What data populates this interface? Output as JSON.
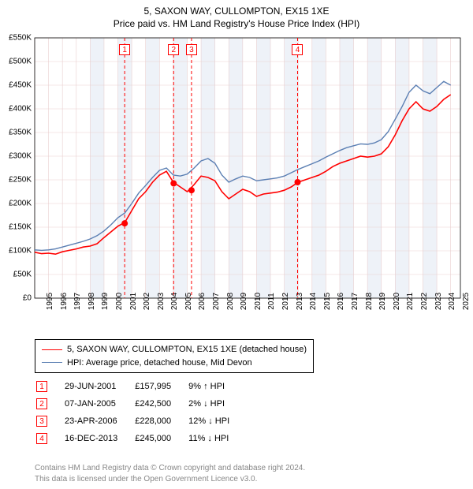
{
  "title_line1": "5, SAXON WAY, CULLOMPTON, EX15 1XE",
  "title_line2": "Price paid vs. HM Land Registry's House Price Index (HPI)",
  "chart": {
    "type": "line",
    "x_min": 1995,
    "x_max": 2025.7,
    "y_min": 0,
    "y_max": 550000,
    "y_ticks": [
      0,
      50000,
      100000,
      150000,
      200000,
      250000,
      300000,
      350000,
      400000,
      450000,
      500000,
      550000
    ],
    "y_tick_labels": [
      "£0",
      "£50K",
      "£100K",
      "£150K",
      "£200K",
      "£250K",
      "£300K",
      "£350K",
      "£400K",
      "£450K",
      "£500K",
      "£550K"
    ],
    "x_ticks": [
      1995,
      1996,
      1997,
      1998,
      1999,
      2000,
      2001,
      2002,
      2003,
      2004,
      2005,
      2006,
      2007,
      2008,
      2009,
      2010,
      2011,
      2012,
      2013,
      2014,
      2015,
      2016,
      2017,
      2018,
      2019,
      2020,
      2021,
      2022,
      2023,
      2024,
      2025
    ],
    "background_color": "#ffffff",
    "grid_color": "#e9cfcf",
    "shaded_band_color": "#eef2f8",
    "shaded_years": [
      1999,
      2001,
      2003,
      2005,
      2007,
      2009,
      2011,
      2013,
      2015,
      2017,
      2019,
      2021,
      2023
    ],
    "series": [
      {
        "name": "price_paid",
        "label": "5, SAXON WAY, CULLOMPTON, EX15 1XE (detached house)",
        "color": "#ff0000",
        "width": 1.6,
        "points": [
          [
            1995.0,
            97000
          ],
          [
            1995.5,
            94000
          ],
          [
            1996.0,
            95000
          ],
          [
            1996.5,
            93000
          ],
          [
            1997.0,
            98000
          ],
          [
            1997.5,
            101000
          ],
          [
            1998.0,
            104000
          ],
          [
            1998.5,
            108000
          ],
          [
            1999.0,
            110000
          ],
          [
            1999.5,
            115000
          ],
          [
            2000.0,
            128000
          ],
          [
            2000.5,
            140000
          ],
          [
            2001.0,
            152000
          ],
          [
            2001.5,
            160000
          ],
          [
            2002.0,
            185000
          ],
          [
            2002.5,
            210000
          ],
          [
            2003.0,
            225000
          ],
          [
            2003.5,
            245000
          ],
          [
            2004.0,
            260000
          ],
          [
            2004.5,
            268000
          ],
          [
            2005.0,
            245000
          ],
          [
            2005.5,
            235000
          ],
          [
            2006.0,
            225000
          ],
          [
            2006.5,
            240000
          ],
          [
            2007.0,
            258000
          ],
          [
            2007.5,
            255000
          ],
          [
            2008.0,
            248000
          ],
          [
            2008.5,
            225000
          ],
          [
            2009.0,
            210000
          ],
          [
            2009.5,
            220000
          ],
          [
            2010.0,
            230000
          ],
          [
            2010.5,
            225000
          ],
          [
            2011.0,
            215000
          ],
          [
            2011.5,
            220000
          ],
          [
            2012.0,
            222000
          ],
          [
            2012.5,
            224000
          ],
          [
            2013.0,
            228000
          ],
          [
            2013.5,
            235000
          ],
          [
            2014.0,
            245000
          ],
          [
            2014.5,
            250000
          ],
          [
            2015.0,
            255000
          ],
          [
            2015.5,
            260000
          ],
          [
            2016.0,
            268000
          ],
          [
            2016.5,
            278000
          ],
          [
            2017.0,
            285000
          ],
          [
            2017.5,
            290000
          ],
          [
            2018.0,
            295000
          ],
          [
            2018.5,
            300000
          ],
          [
            2019.0,
            298000
          ],
          [
            2019.5,
            300000
          ],
          [
            2020.0,
            305000
          ],
          [
            2020.5,
            320000
          ],
          [
            2021.0,
            345000
          ],
          [
            2021.5,
            375000
          ],
          [
            2022.0,
            400000
          ],
          [
            2022.5,
            415000
          ],
          [
            2023.0,
            400000
          ],
          [
            2023.5,
            395000
          ],
          [
            2024.0,
            405000
          ],
          [
            2024.5,
            420000
          ],
          [
            2025.0,
            430000
          ]
        ]
      },
      {
        "name": "hpi",
        "label": "HPI: Average price, detached house, Mid Devon",
        "color": "#5b7fb3",
        "width": 1.4,
        "points": [
          [
            1995.0,
            102000
          ],
          [
            1995.5,
            101000
          ],
          [
            1996.0,
            102000
          ],
          [
            1996.5,
            104000
          ],
          [
            1997.0,
            108000
          ],
          [
            1997.5,
            112000
          ],
          [
            1998.0,
            116000
          ],
          [
            1998.5,
            120000
          ],
          [
            1999.0,
            125000
          ],
          [
            1999.5,
            132000
          ],
          [
            2000.0,
            142000
          ],
          [
            2000.5,
            155000
          ],
          [
            2001.0,
            170000
          ],
          [
            2001.5,
            180000
          ],
          [
            2002.0,
            200000
          ],
          [
            2002.5,
            222000
          ],
          [
            2003.0,
            238000
          ],
          [
            2003.5,
            255000
          ],
          [
            2004.0,
            270000
          ],
          [
            2004.5,
            275000
          ],
          [
            2005.0,
            260000
          ],
          [
            2005.5,
            258000
          ],
          [
            2006.0,
            262000
          ],
          [
            2006.5,
            275000
          ],
          [
            2007.0,
            290000
          ],
          [
            2007.5,
            295000
          ],
          [
            2008.0,
            285000
          ],
          [
            2008.5,
            260000
          ],
          [
            2009.0,
            245000
          ],
          [
            2009.5,
            252000
          ],
          [
            2010.0,
            258000
          ],
          [
            2010.5,
            255000
          ],
          [
            2011.0,
            248000
          ],
          [
            2011.5,
            250000
          ],
          [
            2012.0,
            252000
          ],
          [
            2012.5,
            254000
          ],
          [
            2013.0,
            258000
          ],
          [
            2013.5,
            265000
          ],
          [
            2014.0,
            272000
          ],
          [
            2014.5,
            278000
          ],
          [
            2015.0,
            284000
          ],
          [
            2015.5,
            290000
          ],
          [
            2016.0,
            298000
          ],
          [
            2016.5,
            305000
          ],
          [
            2017.0,
            312000
          ],
          [
            2017.5,
            318000
          ],
          [
            2018.0,
            322000
          ],
          [
            2018.5,
            326000
          ],
          [
            2019.0,
            325000
          ],
          [
            2019.5,
            328000
          ],
          [
            2020.0,
            335000
          ],
          [
            2020.5,
            352000
          ],
          [
            2021.0,
            378000
          ],
          [
            2021.5,
            405000
          ],
          [
            2022.0,
            435000
          ],
          [
            2022.5,
            450000
          ],
          [
            2023.0,
            438000
          ],
          [
            2023.5,
            432000
          ],
          [
            2024.0,
            445000
          ],
          [
            2024.5,
            458000
          ],
          [
            2025.0,
            450000
          ]
        ]
      }
    ],
    "sales": [
      {
        "n": 1,
        "year": 2001.49,
        "price": 157995,
        "date": "29-JUN-2001",
        "price_str": "£157,995",
        "vs_hpi": "9% ↑ HPI"
      },
      {
        "n": 2,
        "year": 2005.02,
        "price": 242500,
        "date": "07-JAN-2005",
        "price_str": "£242,500",
        "vs_hpi": "2% ↓ HPI"
      },
      {
        "n": 3,
        "year": 2006.31,
        "price": 228000,
        "date": "23-APR-2006",
        "price_str": "£228,000",
        "vs_hpi": "12% ↓ HPI"
      },
      {
        "n": 4,
        "year": 2013.96,
        "price": 245000,
        "date": "16-DEC-2013",
        "price_str": "£245,000",
        "vs_hpi": "11% ↓ HPI"
      }
    ],
    "sale_marker_color": "#ff0000",
    "sale_line_dash": "4,3",
    "sale_point_radius": 4
  },
  "footer_line1": "Contains HM Land Registry data © Crown copyright and database right 2024.",
  "footer_line2": "This data is licensed under the Open Government Licence v3.0."
}
